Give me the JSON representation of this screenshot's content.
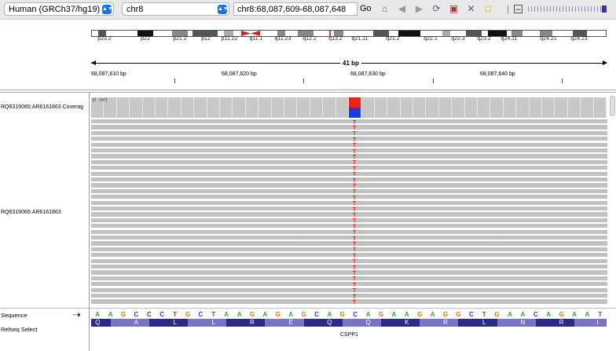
{
  "toolbar": {
    "genome": "Human (GRCh37/hg19)",
    "chromosome": "chr8",
    "locus": "chr8:68,087,609-68,087,648",
    "go_label": "Go"
  },
  "ideogram": {
    "band_labels": [
      "p23.2",
      "p22",
      "p21.2",
      "p12",
      "p11.22",
      "q11.1",
      "q11.23",
      "q12.2",
      "q13.2",
      "q21.11",
      "q21.2",
      "q22.1",
      "q22.3",
      "q23.2",
      "q24.11",
      "q24.21",
      "q24.23"
    ]
  },
  "ruler": {
    "width_label": "41 bp",
    "positions": [
      "68,087,610 bp",
      "68,087,620 bp",
      "68,087,630 bp",
      "68,087,640 bp"
    ]
  },
  "tracks": {
    "coverage_name": "RQ6319065:AR6161863 Coverag",
    "coverage_range": "[0 - 347]",
    "alignment_name": "RQ6319065:AR6161863",
    "sequence_name": "Sequence",
    "refseq_name": "Refseq Select"
  },
  "sequence": {
    "bases": [
      "A",
      "A",
      "G",
      "C",
      "C",
      "C",
      "T",
      "G",
      "C",
      "T",
      "A",
      "A",
      "G",
      "A",
      "G",
      "A",
      "G",
      "C",
      "A",
      "G",
      "C",
      "A",
      "G",
      "A",
      "A",
      "G",
      "A",
      "G",
      "G",
      "C",
      "T",
      "G",
      "A",
      "A",
      "C",
      "A",
      "G",
      "A",
      "A",
      "T"
    ]
  },
  "refseq": {
    "amino_acids": [
      "Q",
      "A",
      "L",
      "L",
      "R",
      "E",
      "Q",
      "Q",
      "K",
      "R",
      "L",
      "N",
      "R",
      "I"
    ],
    "gene": "CSPP1"
  },
  "mismatch_base": "T",
  "colors": {
    "A": "#2ea82e",
    "C": "#1f3cd8",
    "G": "#d1731c",
    "T": "#e8241f",
    "coverage_gray": "#c8c8c8",
    "read_gray": "#c1c1c1",
    "amino_dark": "#2b2a86",
    "amino_light": "#7a74c4"
  }
}
